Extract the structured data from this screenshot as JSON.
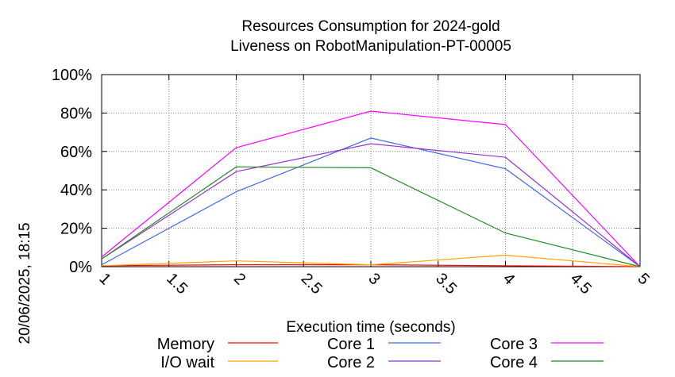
{
  "side_label": "20/06/2025, 18:15",
  "chart_data": {
    "type": "line",
    "title": [
      "Resources Consumption for 2024-gold",
      "Liveness on RobotManipulation-PT-00005"
    ],
    "xlabel": "Execution time (seconds)",
    "ylabel": "",
    "x": [
      1,
      2,
      3,
      4,
      5
    ],
    "xticks": [
      "1",
      "1.5",
      "2",
      "2.5",
      "3",
      "3.5",
      "4",
      "4.5",
      "5"
    ],
    "yticks": [
      "0%",
      "20%",
      "40%",
      "60%",
      "80%",
      "100%"
    ],
    "xlim": [
      1,
      5
    ],
    "ylim": [
      0,
      100
    ],
    "grid": true,
    "legend_position": "bottom",
    "series": [
      {
        "name": "Memory",
        "color": "#ff0000",
        "values": [
          0.5,
          1,
          1,
          0.5,
          0
        ]
      },
      {
        "name": "I/O wait",
        "color": "#ffa500",
        "values": [
          0.5,
          3,
          1,
          6,
          0
        ]
      },
      {
        "name": "Core 1",
        "color": "#4169e1",
        "values": [
          1,
          39,
          67,
          51,
          0
        ]
      },
      {
        "name": "Core 2",
        "color": "#9932cc",
        "values": [
          4,
          49.5,
          64,
          57,
          0
        ]
      },
      {
        "name": "Core 3",
        "color": "#ff00ff",
        "values": [
          5,
          62,
          81,
          74,
          0
        ]
      },
      {
        "name": "Core 4",
        "color": "#228b22",
        "values": [
          4,
          52,
          51.5,
          17.5,
          0
        ]
      }
    ]
  }
}
